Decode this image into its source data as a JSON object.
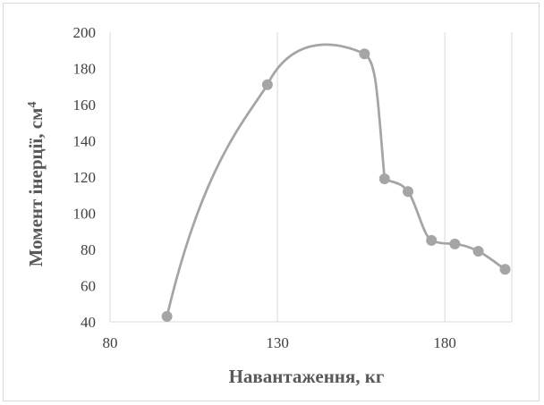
{
  "chart_data": {
    "type": "line",
    "title": "",
    "xlabel": "Навантаження, кг",
    "ylabel_main": "Момент інерції, см",
    "ylabel_sup": "4",
    "xlim": [
      80,
      200
    ],
    "ylim": [
      40,
      200
    ],
    "x_ticks": [
      80,
      130,
      180
    ],
    "y_ticks": [
      40,
      60,
      80,
      100,
      120,
      140,
      160,
      180,
      200
    ],
    "grid": {
      "horizontal": false,
      "vertical": true
    },
    "smooth": true,
    "series": [
      {
        "color": "#a5a5a5",
        "points": [
          {
            "x": 97,
            "y": 43
          },
          {
            "x": 127,
            "y": 171
          },
          {
            "x": 156,
            "y": 188
          },
          {
            "x": 162,
            "y": 119
          },
          {
            "x": 169,
            "y": 112
          },
          {
            "x": 176,
            "y": 85
          },
          {
            "x": 183,
            "y": 83
          },
          {
            "x": 190,
            "y": 79
          },
          {
            "x": 198,
            "y": 69
          }
        ]
      }
    ]
  }
}
